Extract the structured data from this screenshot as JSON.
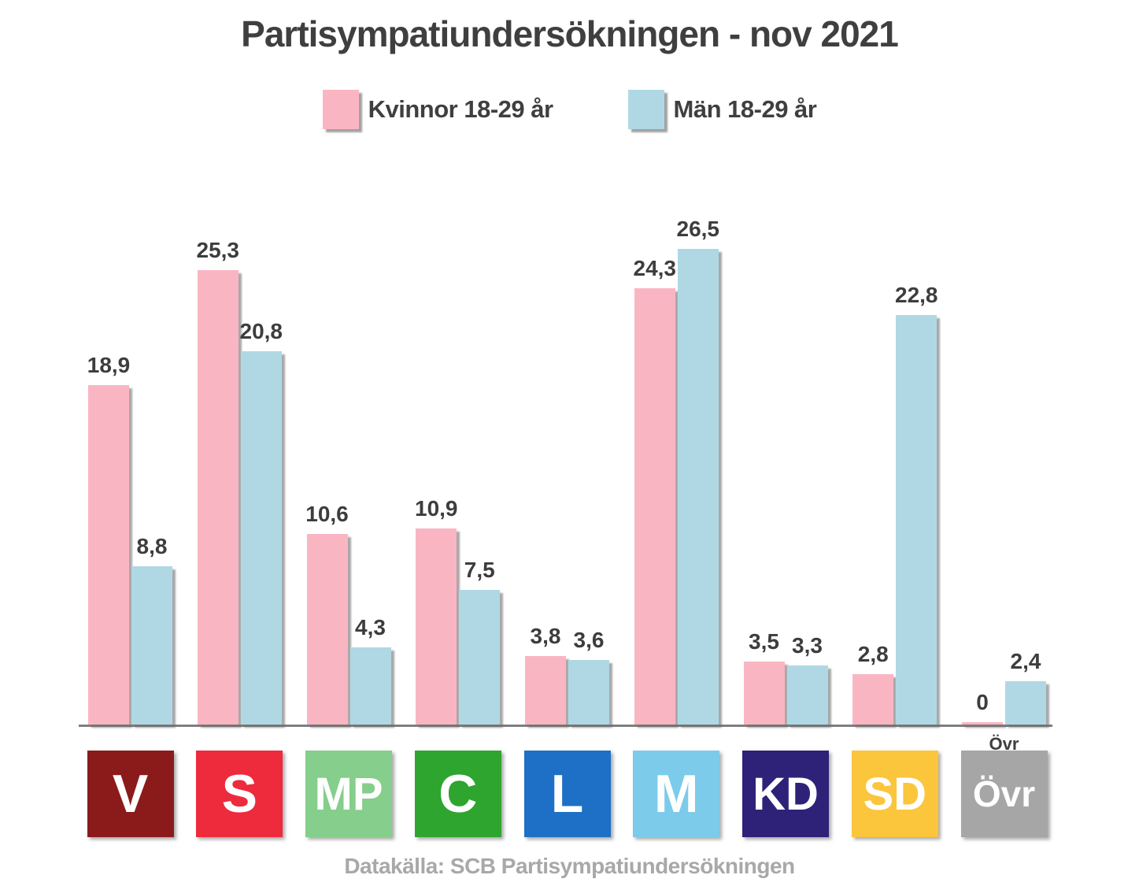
{
  "title": "Partisympatiundersökningen - nov 2021",
  "footer": "Datakälla: SCB Partisympatiundersökningen",
  "legend": {
    "kvinnor_label": "Kvinnor 18-29 år",
    "man_label": "Män 18-29 år",
    "kvinnor_color": "#fab5c3",
    "man_color": "#b0d8e4"
  },
  "chart_data": {
    "type": "bar",
    "title": "Partisympatiundersökningen - nov 2021",
    "categories": [
      "V",
      "S",
      "MP",
      "C",
      "L",
      "M",
      "KD",
      "SD",
      "Övr"
    ],
    "series": [
      {
        "name": "Kvinnor 18-29 år",
        "color": "#fab5c3",
        "values": [
          18.9,
          25.3,
          10.6,
          10.9,
          3.8,
          24.3,
          3.5,
          2.8,
          0
        ],
        "labels": [
          "18,9",
          "25,3",
          "10,6",
          "10,9",
          "3,8",
          "24,3",
          "3,5",
          "2,8",
          "0"
        ]
      },
      {
        "name": "Män 18-29 år",
        "color": "#b0d8e4",
        "values": [
          8.8,
          20.8,
          4.3,
          7.5,
          3.6,
          26.5,
          3.3,
          22.8,
          2.4
        ],
        "labels": [
          "8,8",
          "20,8",
          "4,3",
          "7,5",
          "3,6",
          "26,5",
          "3,3",
          "22,8",
          "2,4"
        ]
      }
    ],
    "category_colors": {
      "V": "#8b1b1b",
      "S": "#ed2b3c",
      "MP": "#85ce8b",
      "C": "#2ea52e",
      "L": "#1d70c5",
      "M": "#7ccbea",
      "KD": "#2e2278",
      "SD": "#fbc53c",
      "Övr": "#a6a6a6"
    },
    "ylim": [
      0,
      27
    ],
    "grid": false,
    "legend_position": "top",
    "value_label_decimal_separator": ",",
    "source_note": "Datakälla: SCB Partisympatiundersökningen"
  }
}
